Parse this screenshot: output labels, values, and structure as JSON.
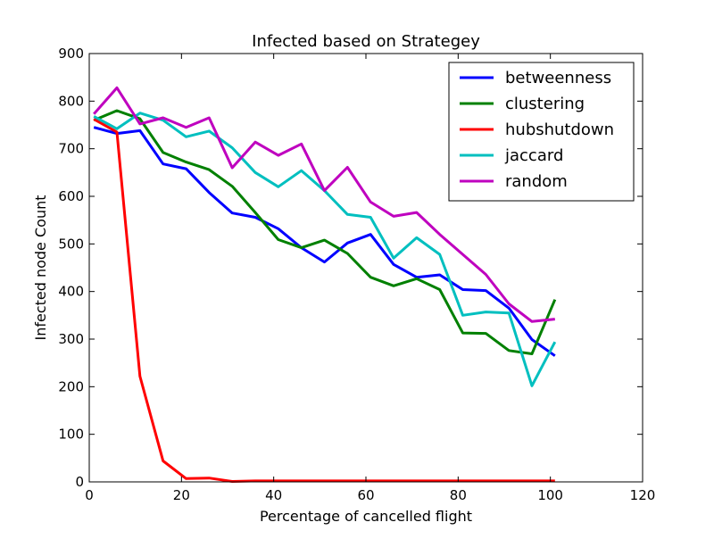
{
  "chart_data": {
    "type": "line",
    "title": "Infected based on Strategey",
    "xlabel": "Percentage of cancelled flight",
    "ylabel": "Infected node Count",
    "xlim": [
      0,
      120
    ],
    "ylim": [
      0,
      900
    ],
    "xticks": [
      0,
      20,
      40,
      60,
      80,
      100,
      120
    ],
    "yticks": [
      0,
      100,
      200,
      300,
      400,
      500,
      600,
      700,
      800,
      900
    ],
    "grid": false,
    "legend_position": "top-right",
    "x": [
      1,
      6,
      11,
      16,
      21,
      26,
      31,
      36,
      41,
      46,
      51,
      56,
      61,
      66,
      71,
      76,
      81,
      86,
      91,
      96,
      101
    ],
    "series": [
      {
        "name": "betweenness",
        "color": "#0000ff",
        "values": [
          745,
          732,
          738,
          668,
          658,
          608,
          565,
          556,
          532,
          492,
          462,
          502,
          520,
          457,
          430,
          435,
          404,
          402,
          365,
          299,
          265
        ]
      },
      {
        "name": "clustering",
        "color": "#008000",
        "values": [
          760,
          780,
          763,
          692,
          672,
          656,
          621,
          566,
          509,
          492,
          508,
          480,
          430,
          412,
          427,
          404,
          313,
          312,
          276,
          269,
          383
        ]
      },
      {
        "name": "hubshutdown",
        "color": "#ff0000",
        "values": [
          762,
          735,
          222,
          44,
          7,
          8,
          1,
          2,
          2,
          2,
          2,
          2,
          2,
          2,
          2,
          2,
          2,
          2,
          2,
          2,
          2
        ]
      },
      {
        "name": "jaccard",
        "color": "#00bfbf",
        "values": [
          768,
          742,
          775,
          760,
          725,
          737,
          702,
          650,
          620,
          654,
          612,
          562,
          556,
          470,
          513,
          478,
          350,
          357,
          355,
          202,
          294
        ]
      },
      {
        "name": "random",
        "color": "#bf00bf",
        "values": [
          773,
          828,
          752,
          765,
          745,
          765,
          660,
          714,
          686,
          710,
          612,
          661,
          588,
          558,
          566,
          520,
          478,
          436,
          374,
          337,
          342
        ]
      }
    ]
  }
}
